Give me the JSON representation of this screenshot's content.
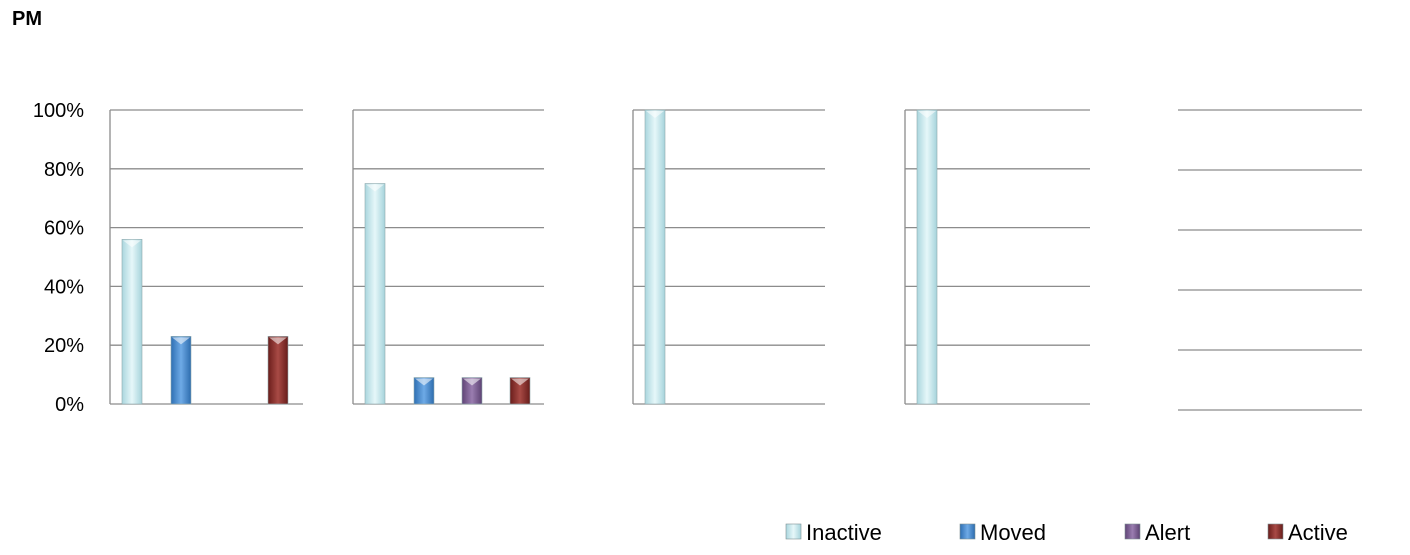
{
  "page": {
    "title": "PM"
  },
  "chart_data": {
    "type": "bar",
    "title": "PM",
    "ylim": [
      0,
      100
    ],
    "yticks": [
      0,
      20,
      40,
      60,
      80,
      100
    ],
    "ytick_suffix": "%",
    "grid": true,
    "legend_position": "bottom-right",
    "series": [
      {
        "name": "Inactive",
        "color": "#c6e9ee"
      },
      {
        "name": "Moved",
        "color": "#4a8fd4"
      },
      {
        "name": "Alert",
        "color": "#7f5f96"
      },
      {
        "name": "Active",
        "color": "#8b2d2a"
      }
    ],
    "groups": [
      {
        "values": [
          56,
          23,
          0,
          23
        ]
      },
      {
        "values": [
          75,
          9,
          9,
          9
        ]
      },
      {
        "values": [
          100,
          0,
          0,
          0
        ]
      },
      {
        "values": [
          100,
          0,
          0,
          0
        ]
      },
      {
        "values": [
          0,
          0,
          0,
          0
        ]
      }
    ]
  }
}
